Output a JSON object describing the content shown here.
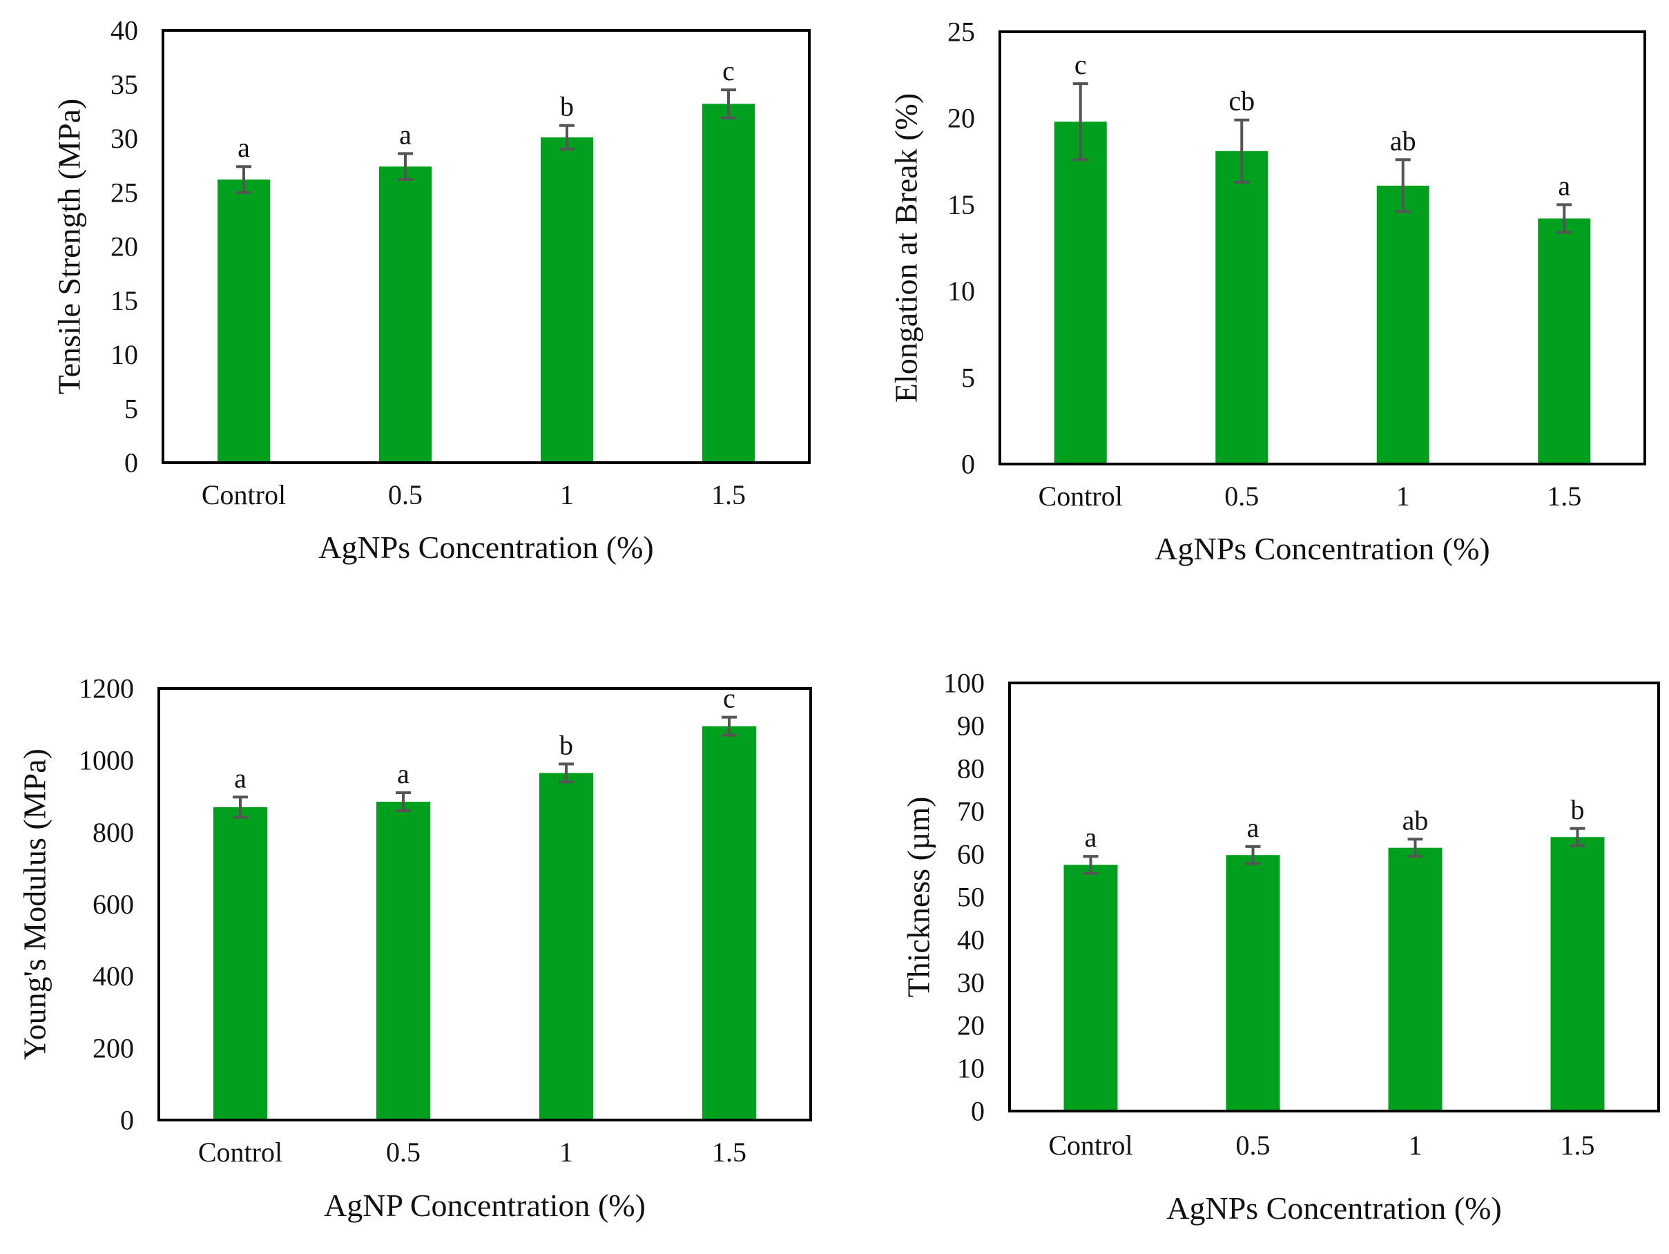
{
  "figure": {
    "bar_color": "#00A01F",
    "error_bar_color": "#555555",
    "frame_color": "#000000"
  },
  "chart_data": [
    {
      "type": "bar",
      "title": "",
      "categories": [
        "Control",
        "0.5",
        "1",
        "1.5"
      ],
      "series": [
        {
          "name": "Tensile Strength",
          "values": [
            26.2,
            27.4,
            30.1,
            33.2
          ]
        }
      ],
      "error": [
        1.2,
        1.2,
        1.1,
        1.3
      ],
      "significance": [
        "a",
        "a",
        "b",
        "c"
      ],
      "ylim": [
        0,
        40
      ],
      "yticks": [
        0,
        5,
        10,
        15,
        20,
        25,
        30,
        35,
        40
      ],
      "xlabel": "AgNPs Concentration (%)",
      "ylabel": "Tensile Strength (MPa)",
      "grid": false
    },
    {
      "type": "bar",
      "title": "",
      "categories": [
        "Control",
        "0.5",
        "1",
        "1.5"
      ],
      "series": [
        {
          "name": "Elongation at Break",
          "values": [
            19.8,
            18.1,
            16.1,
            14.2
          ]
        }
      ],
      "error": [
        2.2,
        1.8,
        1.5,
        0.8
      ],
      "significance": [
        "c",
        "cb",
        "ab",
        "a"
      ],
      "ylim": [
        0,
        25
      ],
      "yticks": [
        0,
        5,
        10,
        15,
        20,
        25
      ],
      "xlabel": "AgNPs Concentration (%)",
      "ylabel": "Elongation at Break (%)",
      "grid": false
    },
    {
      "type": "bar",
      "title": "",
      "categories": [
        "Control",
        "0.5",
        "1",
        "1.5"
      ],
      "series": [
        {
          "name": "Young's Modulus",
          "values": [
            870,
            885,
            965,
            1095
          ]
        }
      ],
      "error": [
        28,
        25,
        25,
        25
      ],
      "significance": [
        "a",
        "a",
        "b",
        "c"
      ],
      "ylim": [
        0,
        1200
      ],
      "yticks": [
        0,
        200,
        400,
        600,
        800,
        1000,
        1200
      ],
      "xlabel": "AgNP Concentration (%)",
      "ylabel": "Young's Modulus (MPa)",
      "grid": false
    },
    {
      "type": "bar",
      "title": "",
      "categories": [
        "Control",
        "0.5",
        "1",
        "1.5"
      ],
      "series": [
        {
          "name": "Thickness",
          "values": [
            57.5,
            59.8,
            61.5,
            64.0
          ]
        }
      ],
      "error": [
        2.0,
        2.0,
        2.0,
        2.0
      ],
      "significance": [
        "a",
        "a",
        "ab",
        "b"
      ],
      "ylim": [
        0,
        100
      ],
      "yticks": [
        0,
        10,
        20,
        30,
        40,
        50,
        60,
        70,
        80,
        90,
        100
      ],
      "xlabel": "AgNPs Concentration (%)",
      "ylabel": "Thickness (µm)",
      "grid": false
    }
  ]
}
